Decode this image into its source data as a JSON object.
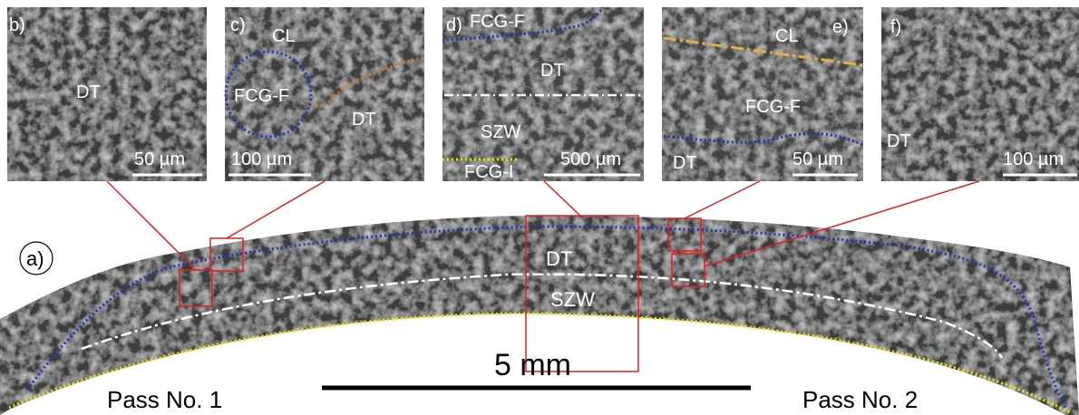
{
  "panels": [
    {
      "label": "b)",
      "texts": [
        "DT"
      ],
      "scale": "50 µm"
    },
    {
      "label": "c)",
      "texts": [
        "CL",
        "FCG-F",
        "DT"
      ],
      "scale": "100 µm"
    },
    {
      "label": "d)",
      "texts": [
        "FCG-F",
        "DT",
        "SZW",
        "FCG-I"
      ],
      "scale": "500 µm"
    },
    {
      "label": "e)",
      "texts": [
        "CL",
        "e)",
        "FCG-F",
        "DT"
      ],
      "scale": "50 µm"
    },
    {
      "label": "f)",
      "texts": [
        "DT"
      ],
      "scale": "100 µm"
    }
  ],
  "main": {
    "label": "a)",
    "texts": [
      "DT",
      "SZW"
    ],
    "scale": "5 mm",
    "passes": [
      "Pass No. 1",
      "Pass No. 2"
    ]
  }
}
